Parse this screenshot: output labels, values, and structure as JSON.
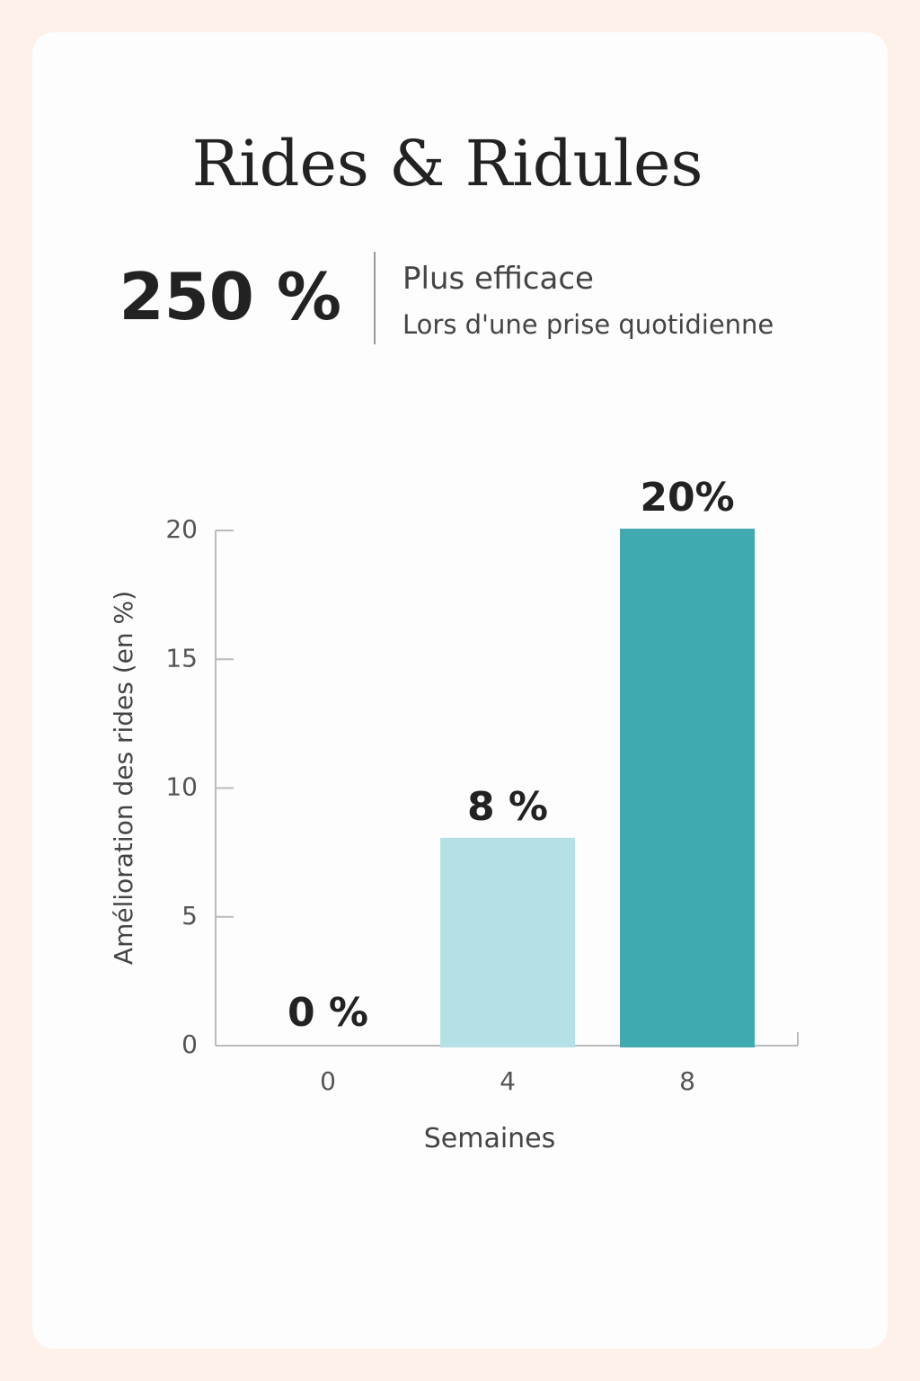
{
  "chart_data": {
    "type": "bar",
    "title": "Rides & Ridules",
    "highlight": {
      "value_label": "250 %",
      "value": 250,
      "headline": "Plus efficace",
      "subline": "Lors d'une prise quotidienne"
    },
    "categories": [
      "0",
      "4",
      "8"
    ],
    "values": [
      0,
      8,
      20
    ],
    "value_labels": [
      "0 %",
      "8 %",
      "20%"
    ],
    "colors": [
      "#d3e2ee",
      "#b5e1e6",
      "#41a9b0"
    ],
    "x_label": "Semaines",
    "y_label": "Amélioration des rides (en %)",
    "ylim": [
      0,
      20
    ],
    "yticks": [
      0,
      5,
      10,
      15,
      20
    ]
  }
}
